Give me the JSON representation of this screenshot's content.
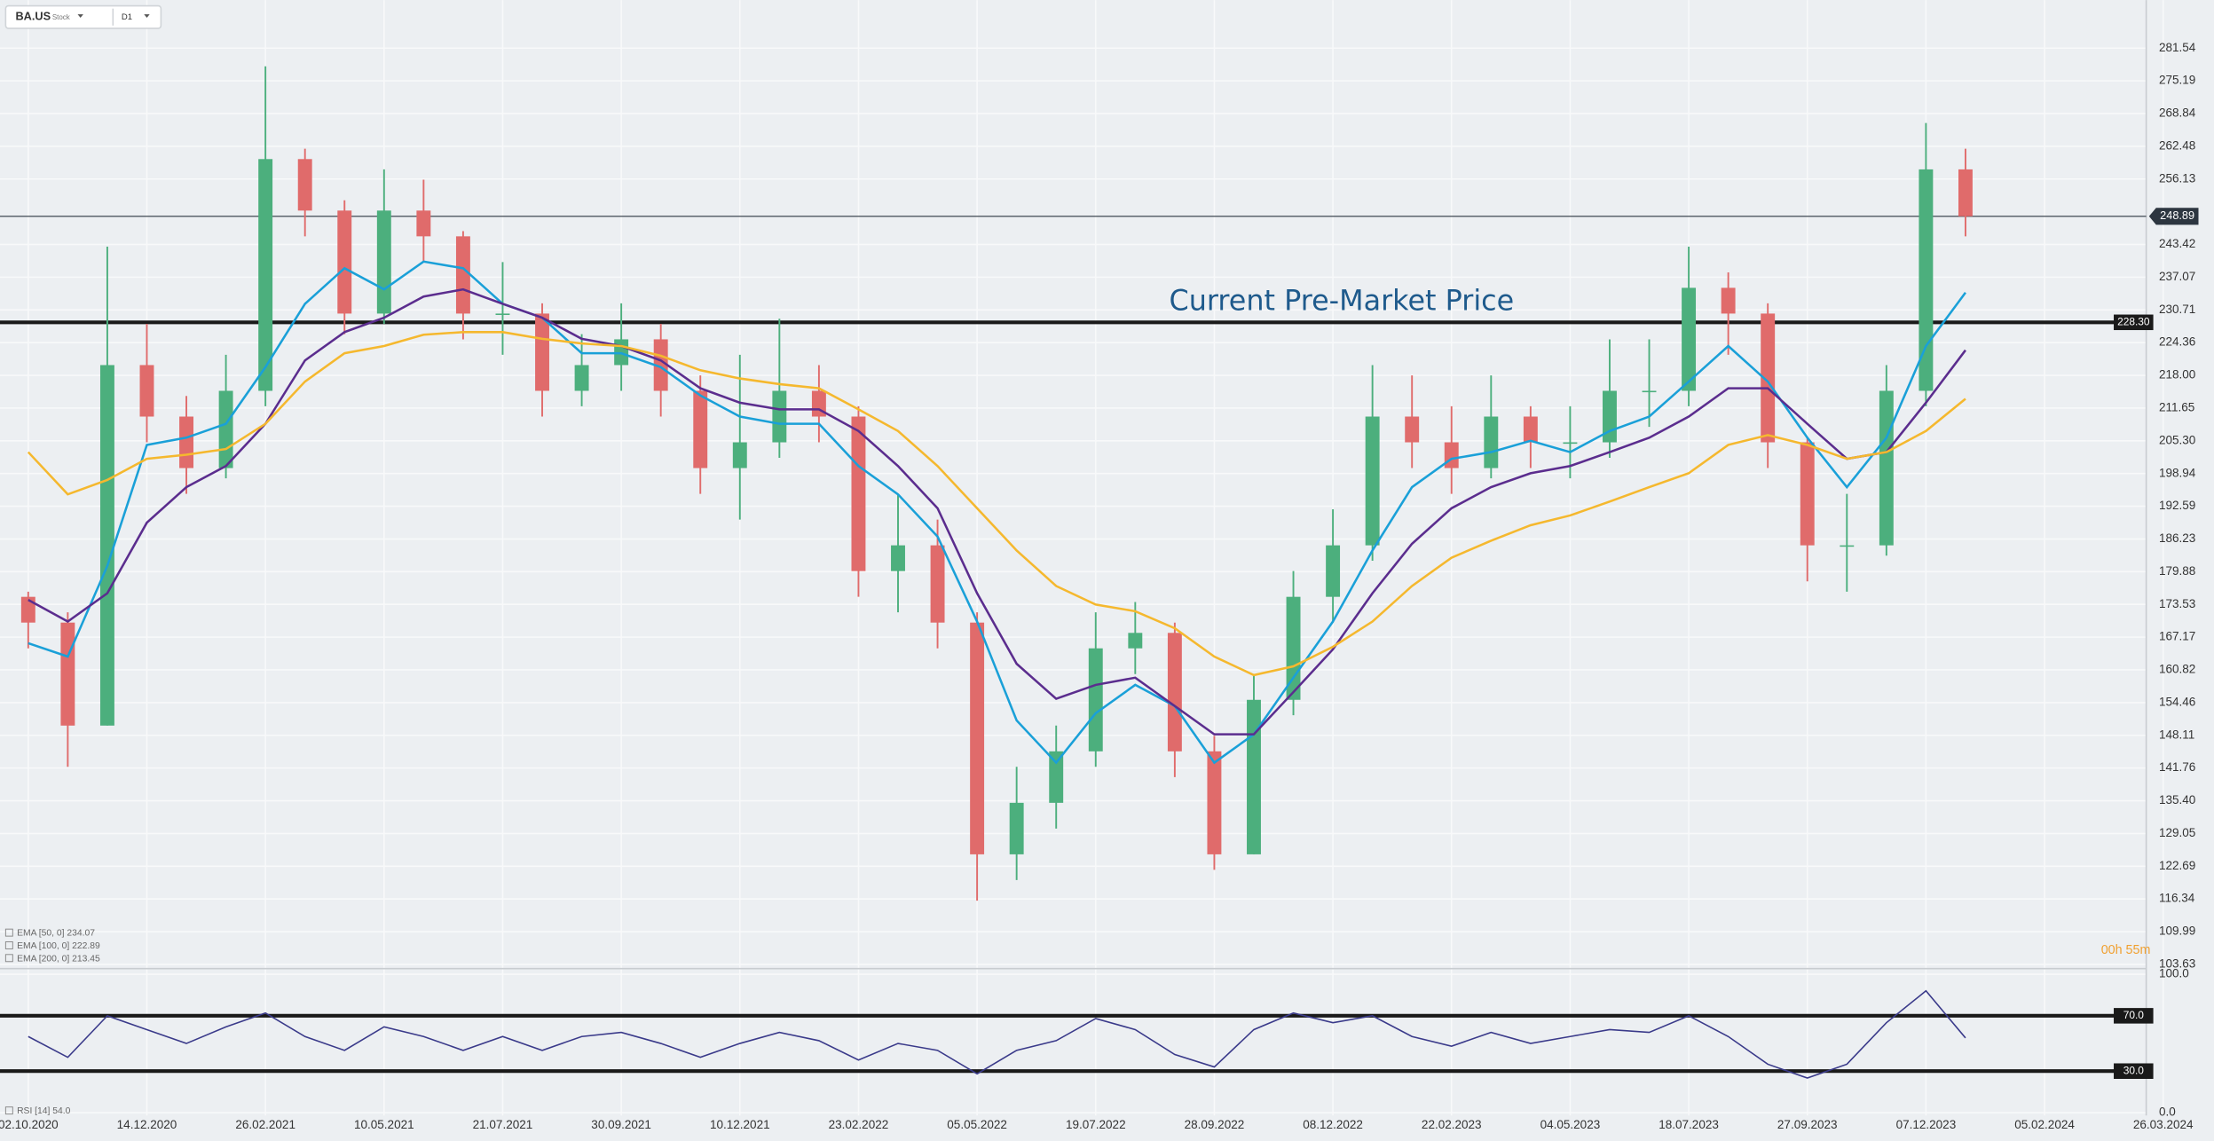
{
  "header": {
    "symbol": "BA.US",
    "kind": "Stock",
    "timeframe": "D1"
  },
  "chart_data": [
    {
      "type": "candlestick",
      "categories": [
        "02.10.2020",
        null,
        null,
        "14.12.2020",
        null,
        null,
        "26.02.2021",
        null,
        null,
        "10.05.2021",
        null,
        null,
        "21.07.2021",
        null,
        null,
        "30.09.2021",
        null,
        null,
        "10.12.2021",
        null,
        null,
        "23.02.2022",
        null,
        null,
        "05.05.2022",
        null,
        null,
        "19.07.2022",
        null,
        null,
        "28.09.2022",
        null,
        null,
        "08.12.2022",
        null,
        null,
        "22.02.2023",
        null,
        null,
        "04.05.2023",
        null,
        null,
        "18.07.2023",
        null,
        null,
        "27.09.2023",
        null,
        null,
        "07.12.2023",
        null,
        null,
        "05.02.2024",
        null,
        null,
        "26.03.2024"
      ],
      "open": [
        175,
        170,
        150,
        220,
        210,
        200,
        215,
        260,
        250,
        230,
        250,
        245,
        230,
        230,
        215,
        220,
        225,
        215,
        200,
        205,
        215,
        210,
        180,
        185,
        170,
        125,
        135,
        145,
        165,
        168,
        145,
        125,
        155,
        175,
        185,
        210,
        205,
        200,
        210,
        205,
        205,
        215,
        215,
        235,
        230,
        205,
        185,
        185,
        215,
        258,
        null,
        null,
        null,
        null,
        null
      ],
      "high": [
        176,
        172,
        243,
        228,
        214,
        222,
        278,
        262,
        252,
        258,
        256,
        246,
        240,
        232,
        226,
        232,
        228,
        218,
        222,
        229,
        220,
        212,
        195,
        190,
        172,
        142,
        150,
        172,
        174,
        170,
        148,
        160,
        180,
        192,
        220,
        218,
        212,
        218,
        212,
        212,
        225,
        225,
        243,
        238,
        232,
        206,
        195,
        220,
        267,
        262,
        null,
        null,
        null,
        null,
        null
      ],
      "low": [
        165,
        142,
        150,
        205,
        195,
        198,
        212,
        245,
        226,
        228,
        240,
        225,
        222,
        210,
        212,
        215,
        210,
        195,
        190,
        202,
        205,
        175,
        172,
        165,
        116,
        120,
        130,
        142,
        160,
        140,
        122,
        125,
        152,
        170,
        182,
        200,
        195,
        198,
        200,
        198,
        202,
        208,
        212,
        222,
        200,
        178,
        176,
        183,
        212,
        245,
        null,
        null,
        null,
        null,
        null
      ],
      "close": [
        170,
        150,
        220,
        210,
        200,
        215,
        260,
        250,
        230,
        250,
        245,
        230,
        230,
        215,
        220,
        225,
        215,
        200,
        205,
        215,
        210,
        180,
        185,
        170,
        125,
        135,
        145,
        165,
        168,
        145,
        125,
        155,
        175,
        185,
        210,
        205,
        200,
        210,
        205,
        205,
        215,
        215,
        235,
        230,
        205,
        185,
        185,
        215,
        258,
        248.89,
        null,
        null,
        null,
        null,
        null
      ],
      "up_color": "#4caf7d",
      "down_color": "#e06b6b",
      "series": [
        {
          "name": "EMA [50, 0] 234.07",
          "color": "#1aa0d8",
          "values": [
            166,
            163.4,
            181,
            204.5,
            205.9,
            208.6,
            219.6,
            231.9,
            238.8,
            234.7,
            240.1,
            238.8,
            231.9,
            229.2,
            222.3,
            222.3,
            219.6,
            214.1,
            210,
            208.6,
            208.6,
            200.4,
            194.9,
            186.7,
            170.2,
            151,
            142.8,
            152.4,
            157.9,
            153.8,
            142.8,
            148.3,
            159.3,
            170.2,
            184,
            196.3,
            201.8,
            203.1,
            205.3,
            203.1,
            207.2,
            210,
            216.8,
            223.7,
            216.8,
            205.9,
            196.3,
            205.9,
            223.7,
            234.07,
            null,
            null,
            null,
            null,
            null
          ]
        },
        {
          "name": "EMA [100, 0] 222.89",
          "color": "#5b2d8e",
          "values": [
            174.4,
            170.2,
            175.7,
            189.4,
            196.3,
            200.4,
            208.6,
            220.9,
            226.4,
            229.2,
            233.3,
            234.7,
            231.9,
            229.2,
            225.1,
            223.7,
            220.9,
            215.5,
            212.7,
            211.4,
            211.4,
            207.2,
            200.4,
            192.2,
            175.7,
            162,
            155.2,
            157.9,
            159.3,
            153.8,
            148.3,
            148.3,
            156.5,
            164.8,
            175.7,
            185.3,
            192.2,
            196.3,
            199,
            200.4,
            203.1,
            205.9,
            210,
            215.5,
            215.5,
            208.6,
            201.8,
            203.1,
            212.7,
            222.89,
            null,
            null,
            null,
            null,
            null
          ]
        },
        {
          "name": "EMA [200, 0] 213.45",
          "color": "#f5b82e",
          "values": [
            203.1,
            194.9,
            197.7,
            201.8,
            202.6,
            203.7,
            208.6,
            216.8,
            222.3,
            223.7,
            225.9,
            226.4,
            226.4,
            225.1,
            224.2,
            223.7,
            221.8,
            219,
            217.4,
            216.3,
            215.5,
            211.4,
            207.2,
            200.4,
            192.2,
            184,
            177.1,
            173.5,
            172.2,
            168.9,
            163.4,
            159.8,
            161.5,
            165.3,
            170.2,
            177.1,
            182.6,
            185.9,
            188.9,
            190.8,
            193.5,
            196.3,
            199,
            204.5,
            206.4,
            204.5,
            201.8,
            203.1,
            207.2,
            213.45,
            null,
            null,
            null,
            null,
            null
          ]
        }
      ],
      "ylim": [
        103.63,
        281.54
      ],
      "yticks": [
        281.54,
        275.19,
        268.84,
        262.48,
        256.13,
        243.42,
        237.07,
        230.71,
        224.36,
        {
          "value": 218,
          "label": "218.00"
        },
        211.65,
        {
          "value": 205.3,
          "label": "205.30"
        },
        198.94,
        192.59,
        186.23,
        179.88,
        173.53,
        167.17,
        160.82,
        154.46,
        148.11,
        141.76,
        {
          "value": 135.4,
          "label": "135.40"
        },
        129.05,
        122.69,
        116.34,
        109.99,
        103.63
      ],
      "hlines": [
        {
          "value": 248.89,
          "color": "#2d3640",
          "line_style": "thin"
        },
        {
          "value": 228.3,
          "label": "228.30",
          "color": "#1a1a1a",
          "line_style": "bold"
        }
      ],
      "annotation": "Current Pre-Market Price",
      "countdown": "00h 55m",
      "grid": true
    },
    {
      "type": "line",
      "series": [
        {
          "name": "RSI [14] 54.0",
          "color": "#3a3a8a",
          "values": [
            55,
            40,
            70,
            60,
            50,
            62,
            72,
            55,
            45,
            62,
            55,
            45,
            55,
            45,
            55,
            58,
            50,
            40,
            50,
            58,
            52,
            38,
            50,
            45,
            28,
            45,
            52,
            68,
            60,
            42,
            33,
            60,
            72,
            65,
            70,
            55,
            48,
            58,
            50,
            55,
            60,
            58,
            70,
            55,
            35,
            25,
            35,
            65,
            88,
            54.0,
            null,
            null,
            null,
            null,
            null
          ]
        }
      ],
      "ylim": [
        0,
        100
      ],
      "yticks": [
        {
          "value": 100,
          "label": "100.0"
        },
        {
          "value": 0,
          "label": "0.0"
        }
      ],
      "hlines": [
        {
          "value": 70,
          "label": "70.0",
          "color": "#1a1a1a",
          "line_style": "bold"
        },
        {
          "value": 30,
          "label": "30.0",
          "color": "#1a1a1a",
          "line_style": "bold"
        }
      ],
      "grid": true
    }
  ]
}
